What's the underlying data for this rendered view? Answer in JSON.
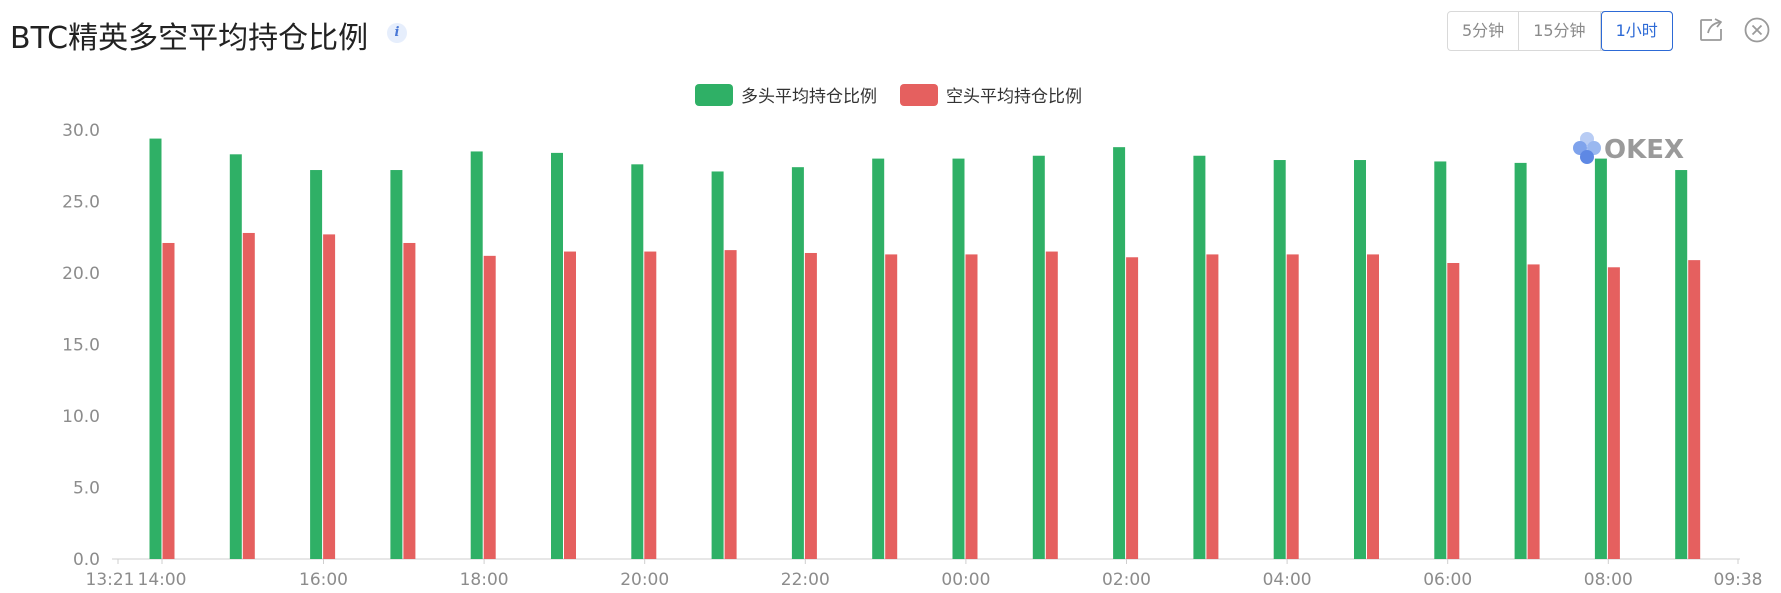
{
  "header": {
    "title": "BTC精英多空平均持仓比例",
    "info_icon": "info-icon",
    "intervals": [
      "5分钟",
      "15分钟",
      "1小时"
    ],
    "active_interval": "1小时",
    "share_icon": "share-icon",
    "close_icon": "close-icon"
  },
  "watermark": "OKEX",
  "colors": {
    "long": "#2fb066",
    "short": "#e5605f",
    "active": "#2d6ad6"
  },
  "chart_data": {
    "type": "bar",
    "title": "",
    "xlabel": "",
    "ylabel": "",
    "ylim": [
      0,
      30
    ],
    "yticks": [
      "0.0",
      "5.0",
      "10.0",
      "15.0",
      "20.0",
      "25.0",
      "30.0"
    ],
    "xticks": [
      "13:21",
      "14:00",
      "16:00",
      "18:00",
      "20:00",
      "22:00",
      "00:00",
      "02:00",
      "04:00",
      "06:00",
      "08:00",
      "09:38"
    ],
    "legend_position": "top-center",
    "grid": false,
    "series": [
      {
        "name": "多头平均持仓比例",
        "color": "#2fb066",
        "values": [
          29.4,
          28.3,
          27.2,
          27.2,
          28.5,
          28.4,
          27.6,
          27.1,
          27.4,
          28.0,
          28.0,
          28.2,
          28.8,
          28.2,
          27.9,
          27.9,
          27.8,
          27.7,
          28.0,
          27.2
        ]
      },
      {
        "name": "空头平均持仓比例",
        "color": "#e5605f",
        "values": [
          22.1,
          22.8,
          22.7,
          22.1,
          21.2,
          21.5,
          21.5,
          21.6,
          21.4,
          21.3,
          21.3,
          21.5,
          21.1,
          21.3,
          21.3,
          21.3,
          20.7,
          20.6,
          20.4,
          20.9
        ]
      }
    ]
  }
}
